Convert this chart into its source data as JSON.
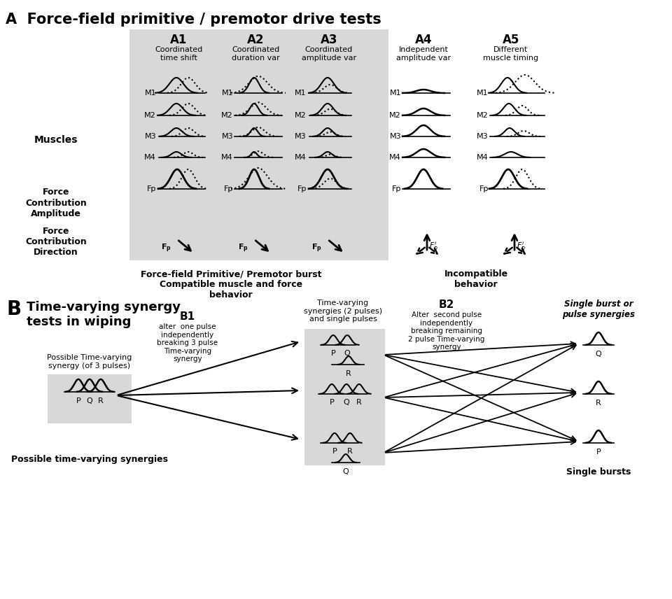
{
  "title_A": "A  Force-field primitive / premotor drive tests",
  "col_labels": [
    "A1",
    "A2",
    "A3",
    "A4",
    "A5"
  ],
  "col_subtitles": [
    "Coordinated\ntime shift",
    "Coordinated\nduration var",
    "Coordinated\namplitude var",
    "Independent\namplitude var",
    "Different\nmuscle timing"
  ],
  "muscle_labels": [
    "M1",
    "M2",
    "M3",
    "M4"
  ],
  "row_label_muscles": "Muscles",
  "row_label_fca": "Force\nContribution\nAmplitude",
  "row_label_fcd": "Force\nContribution\nDirection",
  "fp_label": "Fp",
  "bottom_text_left": "Force-field Primitive/ Premotor burst\nCompatible muscle and force\nbehavior",
  "bottom_text_right": "Incompatible\nbehavior",
  "b_title": "Time-varying synergy\ntests in wiping",
  "b1_label": "B1",
  "b1_text": "alter  one pulse\nindependently\nbreaking 3 pulse\nTime-varying\nsynergy",
  "b2_label": "B2",
  "b2_text": "Alter  second pulse\nindependently\nbreaking remaining\n2 pulse Time-varying\nsynergy",
  "b_mid_label": "Time-varying\nsynergies (2 pulses)\nand single pulses",
  "b_right_label": "Single burst or\npulse synergies",
  "b_left_label": "Possible Time-varying\nsynergy (of 3 pulses)",
  "b_bottom_label": "Possible time-varying synergies",
  "single_bursts_label": "Single bursts"
}
